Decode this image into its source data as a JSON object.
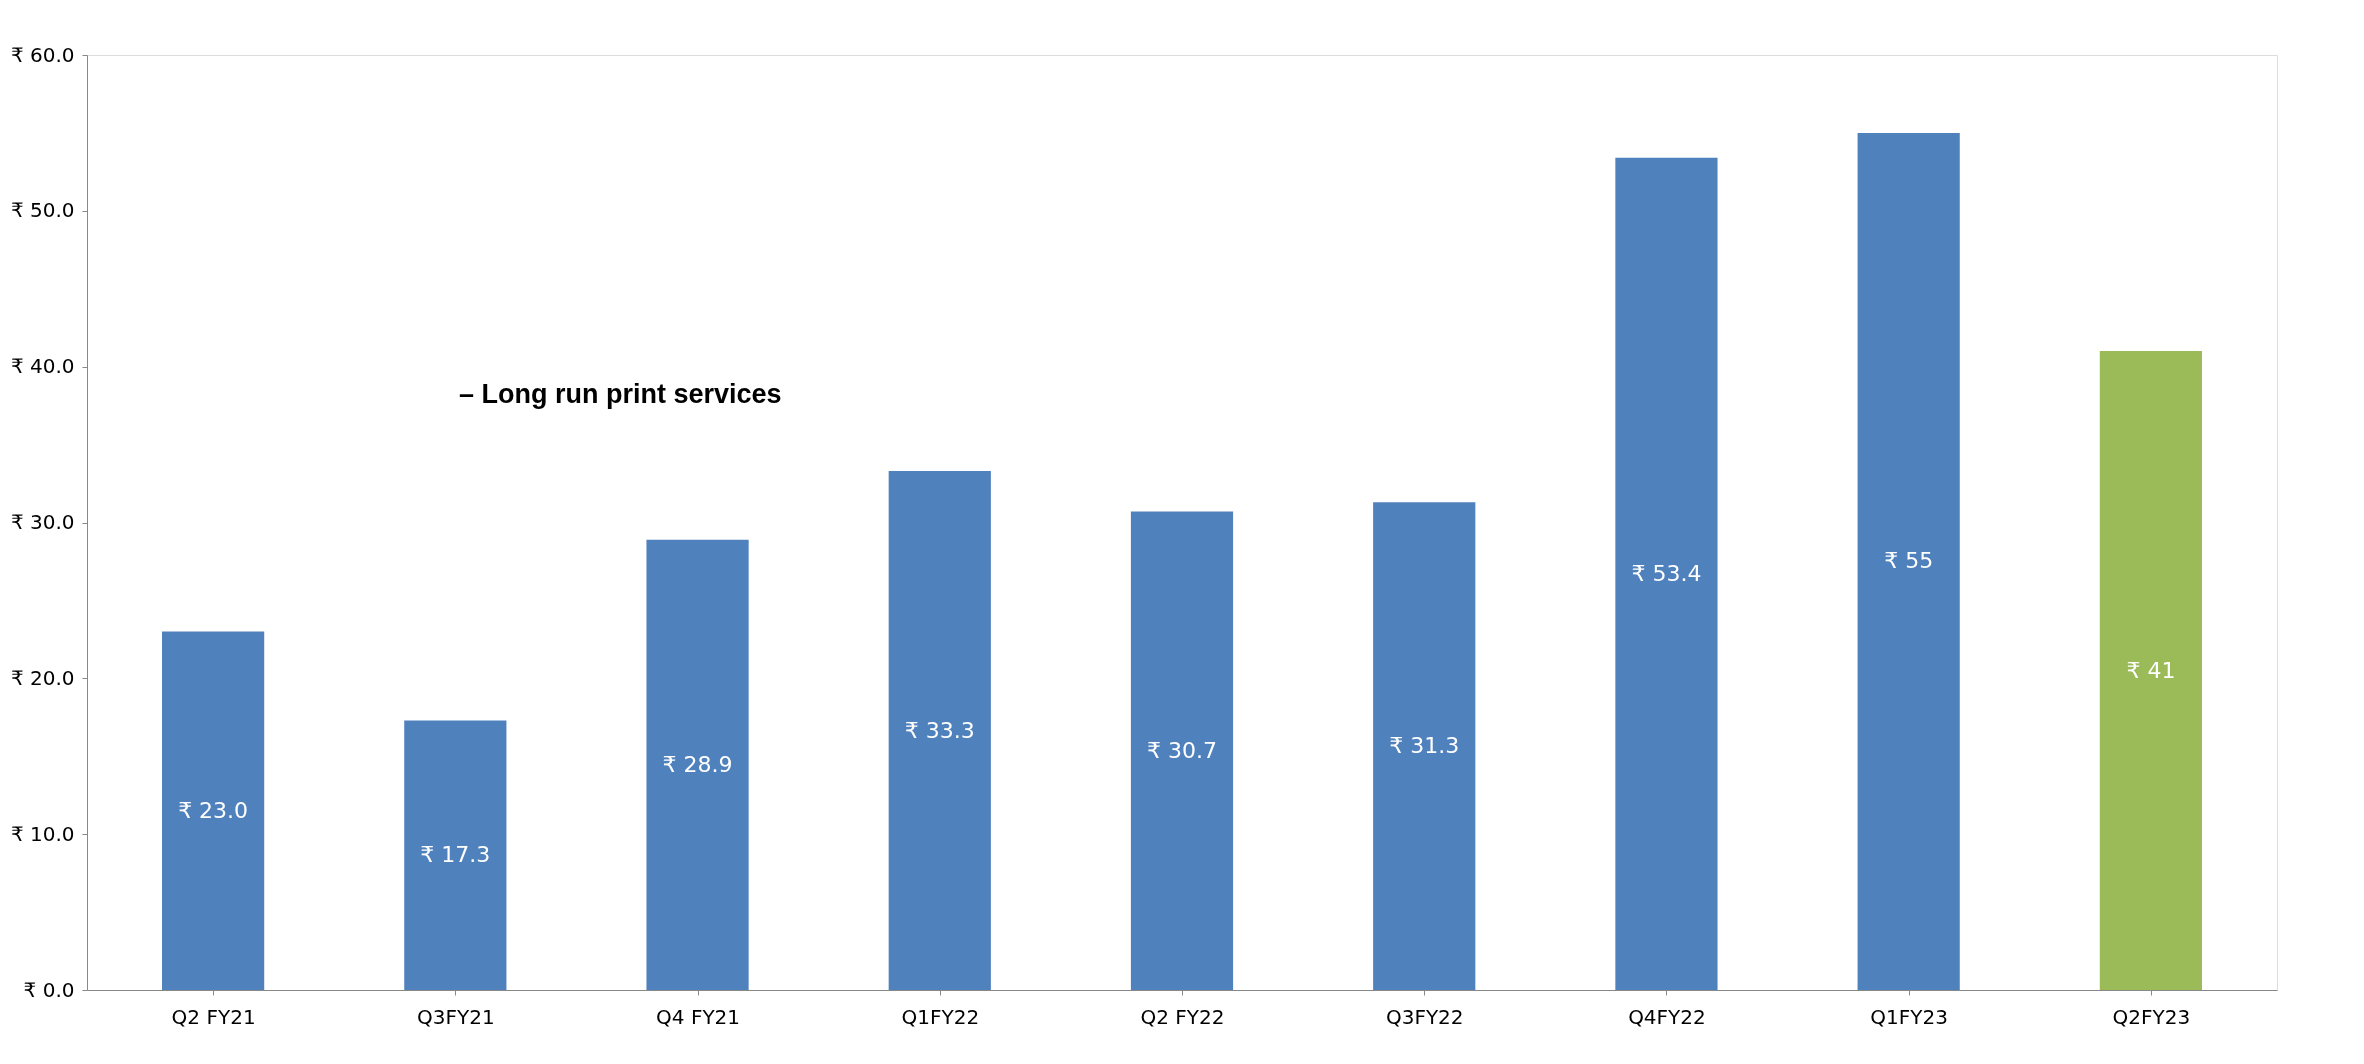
{
  "chart_data": {
    "type": "bar",
    "categories": [
      "Q2 FY21",
      "Q3FY21",
      "Q4 FY21",
      "Q1FY22",
      "Q2 FY22",
      "Q3FY22",
      "Q4FY22",
      "Q1FY23",
      "Q2FY23"
    ],
    "values": [
      23.0,
      17.3,
      28.9,
      33.3,
      30.7,
      31.3,
      53.4,
      55,
      41
    ],
    "colors": [
      "#4f81bd",
      "#4f81bd",
      "#4f81bd",
      "#4f81bd",
      "#4f81bd",
      "#4f81bd",
      "#4f81bd",
      "#4f81bd",
      "#9bbb59"
    ],
    "value_labels": [
      "₹ 23.0",
      "₹ 17.3",
      "₹ 28.9",
      "₹ 33.3",
      "₹ 30.7",
      "₹ 31.3",
      "₹ 53.4",
      "₹ 55",
      "₹ 41"
    ],
    "ylim": [
      0,
      60
    ],
    "yticks": [
      {
        "value": 0,
        "label": "₹ 0.0"
      },
      {
        "value": 10,
        "label": "₹ 10.0"
      },
      {
        "value": 20,
        "label": "₹ 20.0"
      },
      {
        "value": 30,
        "label": "₹ 30.0"
      },
      {
        "value": 40,
        "label": "₹ 40.0"
      },
      {
        "value": 50,
        "label": "₹ 50.0"
      },
      {
        "value": 60,
        "label": "₹ 60.0"
      }
    ],
    "grid": false,
    "annotations": [
      "– Long run print services"
    ]
  }
}
